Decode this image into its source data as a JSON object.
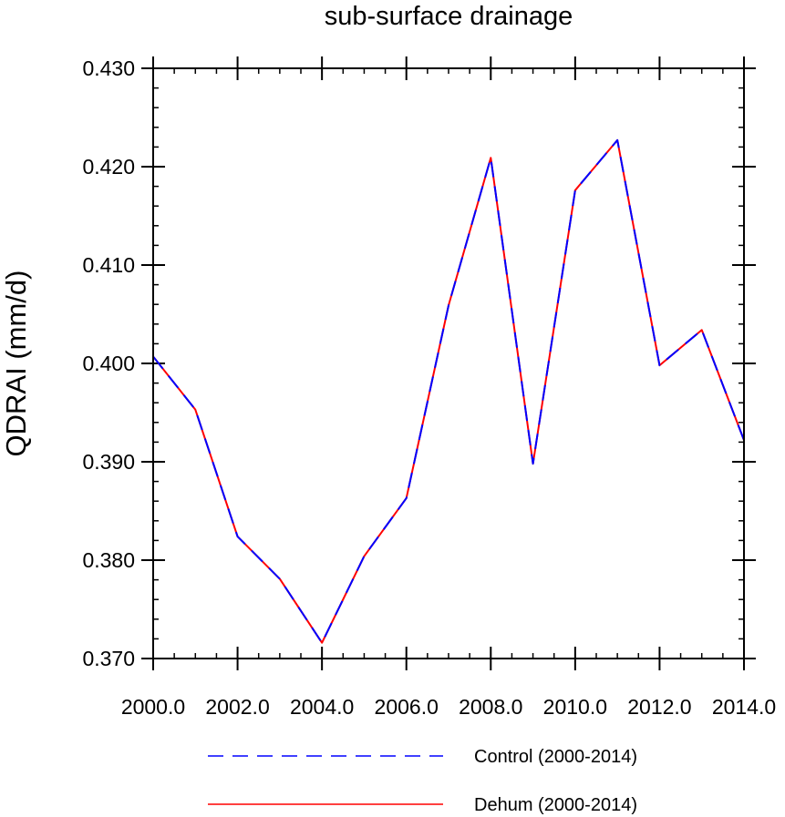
{
  "chart_data": {
    "type": "line",
    "title": "sub-surface drainage",
    "xlabel": "",
    "ylabel": "QDRAI  (mm/d)",
    "xlim": [
      2000,
      2014
    ],
    "ylim": [
      0.37,
      0.43
    ],
    "xticks": [
      2000,
      2002,
      2004,
      2006,
      2008,
      2010,
      2012,
      2014
    ],
    "xtick_labels": [
      "2000.0",
      "2002.0",
      "2004.0",
      "2006.0",
      "2008.0",
      "2010.0",
      "2012.0",
      "2014.0"
    ],
    "yticks": [
      0.37,
      0.38,
      0.39,
      0.4,
      0.41,
      0.42,
      0.43
    ],
    "ytick_labels": [
      "0.370",
      "0.380",
      "0.390",
      "0.400",
      "0.410",
      "0.420",
      "0.430"
    ],
    "grid": false,
    "legend_position": "bottom",
    "x": [
      2000,
      2001,
      2002,
      2003,
      2004,
      2005,
      2006,
      2007,
      2008,
      2009,
      2010,
      2011,
      2012,
      2013,
      2014
    ],
    "series": [
      {
        "name": "Control (2000-2014)",
        "color": "#0000ff",
        "style": "dashed",
        "values": [
          0.4007,
          0.3953,
          0.3824,
          0.3781,
          0.3716,
          0.3804,
          0.3863,
          0.4059,
          0.4209,
          0.3898,
          0.4176,
          0.4227,
          0.3998,
          0.4034,
          0.3922
        ]
      },
      {
        "name": "Dehum (2000-2014)",
        "color": "#ff0000",
        "style": "solid",
        "values": [
          0.4007,
          0.3953,
          0.3824,
          0.3781,
          0.3716,
          0.3804,
          0.3863,
          0.4059,
          0.4209,
          0.3898,
          0.4176,
          0.4227,
          0.3998,
          0.4034,
          0.3922
        ]
      }
    ]
  }
}
